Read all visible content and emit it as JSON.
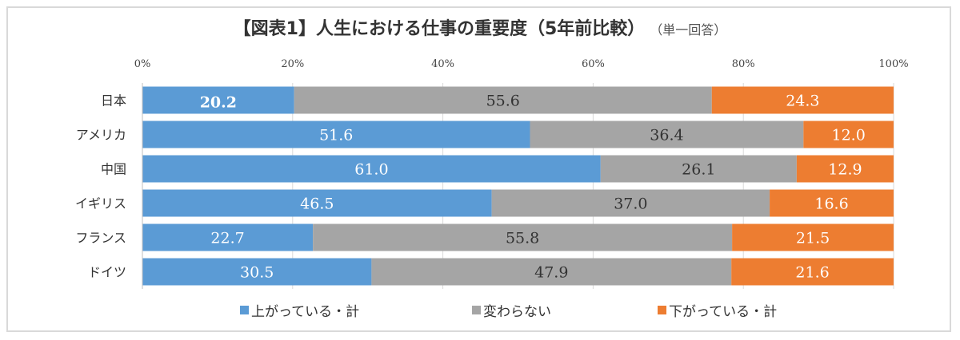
{
  "chart_data": {
    "type": "bar",
    "orientation": "horizontal",
    "stacked": "100%",
    "title": "【図表1】人生における仕事の重要度（5年前比較）",
    "subtitle": "（単一回答）",
    "categories": [
      "日本",
      "アメリカ",
      "中国",
      "イギリス",
      "フランス",
      "ドイツ"
    ],
    "series": [
      {
        "name": "上がっている・計",
        "color": "#5b9bd5",
        "values": [
          20.2,
          51.6,
          61.0,
          46.5,
          22.7,
          30.5
        ]
      },
      {
        "name": "変わらない",
        "color": "#a5a5a5",
        "values": [
          55.6,
          36.4,
          26.1,
          37.0,
          55.8,
          47.9
        ]
      },
      {
        "name": "下がっている・計",
        "color": "#ed7d31",
        "values": [
          24.3,
          12.0,
          12.9,
          16.6,
          21.5,
          21.6
        ]
      }
    ],
    "xlim": [
      0,
      100
    ],
    "x_ticks": [
      "0%",
      "20%",
      "40%",
      "60%",
      "80%",
      "100%"
    ],
    "x_axis_position": "top",
    "grid": true,
    "legend": "bottom",
    "data_labels": true
  }
}
